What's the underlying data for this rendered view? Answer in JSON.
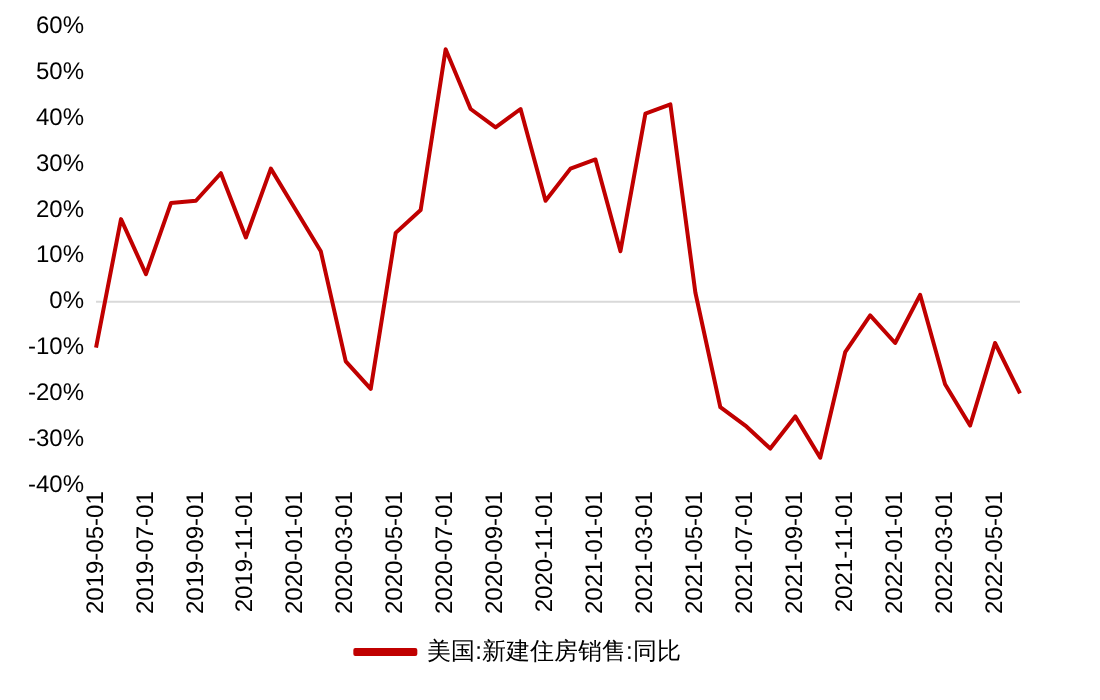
{
  "chart_data": {
    "type": "line",
    "categories": [
      "2019-05-01",
      null,
      "2019-07-01",
      null,
      "2019-09-01",
      null,
      "2019-11-01",
      null,
      "2020-01-01",
      null,
      "2020-03-01",
      null,
      "2020-05-01",
      null,
      "2020-07-01",
      null,
      "2020-09-01",
      null,
      "2020-11-01",
      null,
      "2021-01-01",
      null,
      "2021-03-01",
      null,
      "2021-05-01",
      null,
      "2021-07-01",
      null,
      "2021-09-01",
      null,
      "2021-11-01",
      null,
      "2022-01-01",
      null,
      "2022-03-01",
      null,
      "2022-05-01",
      null
    ],
    "series": [
      {
        "name": "美国:新建住房销售:同比",
        "color": "#c00000",
        "values": [
          -10,
          18,
          6,
          21.5,
          22,
          28,
          14,
          29,
          20,
          11,
          -13,
          -19,
          15,
          20,
          55,
          42,
          38,
          42,
          22,
          29,
          31,
          11,
          41,
          43,
          2,
          -23,
          -27,
          -32,
          -25,
          -34,
          -11,
          -3,
          -9,
          1.5,
          -18,
          -27,
          -9,
          -20
        ]
      }
    ],
    "ylim": [
      -40,
      60
    ],
    "yticks": [
      {
        "value": -40,
        "label": "-40%"
      },
      {
        "value": -30,
        "label": "-30%"
      },
      {
        "value": -20,
        "label": "-20%"
      },
      {
        "value": -10,
        "label": "-10%"
      },
      {
        "value": 0,
        "label": "0%"
      },
      {
        "value": 10,
        "label": "10%"
      },
      {
        "value": 20,
        "label": "20%"
      },
      {
        "value": 30,
        "label": "30%"
      },
      {
        "value": 40,
        "label": "40%"
      },
      {
        "value": 50,
        "label": "50%"
      },
      {
        "value": 60,
        "label": "60%"
      }
    ],
    "ref_lines": [
      {
        "axis": "y",
        "value": 0,
        "color": "#d9d9d9"
      }
    ],
    "grid": false,
    "legend": "bottom",
    "marker": "none",
    "line_style": "solid"
  }
}
